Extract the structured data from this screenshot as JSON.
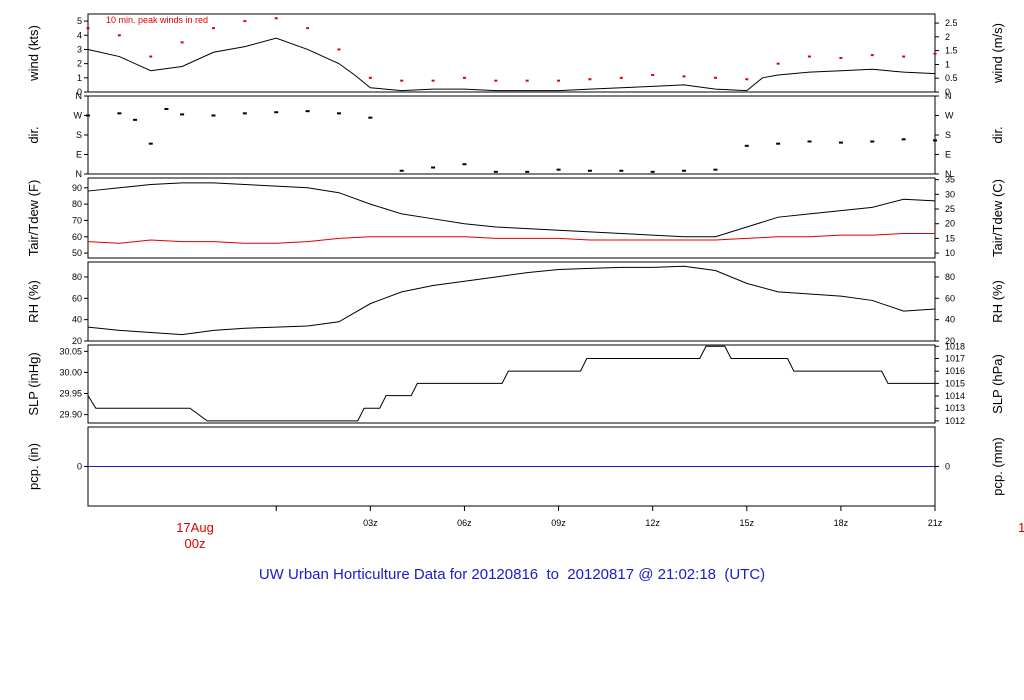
{
  "title": "UW Urban Horticulture Data for 20120816  to  20120817 @ 21:02:18  (UTC)",
  "date_label": {
    "day": "17Aug",
    "hour": "00z"
  },
  "edge_label": "1",
  "colors": {
    "series": "#000000",
    "red": "#e00000",
    "blue": "#1a1acc"
  },
  "chart_data": [
    {
      "type": "line",
      "panel": "wind",
      "ylabel": "wind (kts)",
      "ylabel_right": "wind (m/s)",
      "annotation": "10 min. peak winds in red",
      "ylim": [
        0,
        5.5
      ],
      "yticks": [
        "0",
        "1",
        "2",
        "3",
        "4",
        "5"
      ],
      "yticks_right": [
        "0",
        "0.5",
        "1",
        "1.5",
        "2",
        "2.5"
      ],
      "yticks_right_values": [
        0,
        0.97,
        1.94,
        2.92,
        3.89,
        4.86
      ],
      "x_hours": [
        -6,
        -5,
        -4,
        -3,
        -2,
        -1,
        0,
        1,
        2,
        2.5,
        3,
        4,
        5,
        6,
        7,
        8,
        9,
        10,
        11,
        12,
        13,
        14,
        15,
        15.5,
        16,
        17,
        18,
        19,
        20,
        21
      ],
      "values": [
        3.0,
        2.5,
        1.5,
        1.8,
        2.8,
        3.2,
        3.8,
        3.0,
        2.0,
        1.2,
        0.3,
        0.1,
        0.2,
        0.2,
        0.1,
        0.1,
        0.1,
        0.2,
        0.3,
        0.4,
        0.5,
        0.2,
        0.1,
        1.0,
        1.2,
        1.4,
        1.5,
        1.6,
        1.4,
        1.3
      ],
      "peak_x_hours": [
        -6,
        -5,
        -4,
        -3,
        -2,
        -1,
        0,
        1,
        2,
        3,
        4,
        5,
        6,
        7,
        8,
        9,
        10,
        11,
        12,
        13,
        14,
        15,
        16,
        17,
        18,
        19,
        20,
        21
      ],
      "peak_values": [
        4.5,
        4.0,
        2.5,
        3.5,
        4.5,
        5.0,
        5.2,
        4.5,
        3.0,
        1.0,
        0.8,
        0.8,
        1.0,
        0.8,
        0.8,
        0.8,
        0.9,
        1.0,
        1.2,
        1.1,
        1.0,
        0.9,
        2.0,
        2.5,
        2.4,
        2.6,
        2.5,
        2.7
      ]
    },
    {
      "type": "scatter",
      "panel": "dir",
      "ylabel": "dir.",
      "ylabel_right": "dir.",
      "ylim": [
        0,
        360
      ],
      "yticks": [
        "N",
        "E",
        "S",
        "W",
        "N"
      ],
      "yticks_right": [
        "N",
        "E",
        "S",
        "W",
        "N"
      ],
      "x_hours": [
        -6,
        -5,
        -4.5,
        -4,
        -3.5,
        -3,
        -2,
        -1,
        0,
        1,
        2,
        3,
        4,
        5,
        6,
        7,
        8,
        9,
        10,
        11,
        12,
        13,
        14,
        15,
        16,
        17,
        18,
        19,
        20,
        21
      ],
      "values": [
        270,
        280,
        250,
        140,
        300,
        275,
        270,
        280,
        285,
        290,
        280,
        260,
        15,
        30,
        45,
        10,
        10,
        20,
        15,
        15,
        10,
        15,
        20,
        130,
        140,
        150,
        145,
        150,
        160,
        155
      ]
    },
    {
      "type": "line",
      "panel": "temperature",
      "ylabel": "Tair/Tdew (F)",
      "ylabel_right": "Tair/Tdew (C)",
      "ylim": [
        47,
        96
      ],
      "yticks": [
        "50",
        "60",
        "70",
        "80",
        "90"
      ],
      "yticks_right": [
        "10",
        "15",
        "20",
        "25",
        "30",
        "35"
      ],
      "yticks_right_values": [
        50,
        59,
        68,
        77,
        86,
        95
      ],
      "x_hours": [
        -6,
        -5,
        -4,
        -3,
        -2,
        -1,
        0,
        1,
        2,
        3,
        4,
        5,
        6,
        7,
        8,
        9,
        10,
        11,
        12,
        13,
        14,
        15,
        16,
        17,
        18,
        19,
        20,
        21
      ],
      "series": [
        {
          "name": "Tair",
          "values": [
            88,
            90,
            92,
            93,
            93,
            92,
            91,
            90,
            87,
            80,
            74,
            71,
            68,
            66,
            65,
            64,
            63,
            62,
            61,
            60,
            60,
            66,
            72,
            74,
            76,
            78,
            83,
            82
          ]
        },
        {
          "name": "Tdew",
          "values": [
            57,
            56,
            58,
            57,
            57,
            56,
            56,
            57,
            59,
            60,
            60,
            60,
            60,
            59,
            59,
            59,
            58,
            58,
            58,
            58,
            58,
            59,
            60,
            60,
            61,
            61,
            62,
            62
          ]
        }
      ]
    },
    {
      "type": "line",
      "panel": "rh",
      "ylabel": "RH (%)",
      "ylabel_right": "RH (%)",
      "ylim": [
        20,
        94
      ],
      "yticks": [
        "20",
        "40",
        "60",
        "80"
      ],
      "yticks_right": [
        "20",
        "40",
        "60",
        "80"
      ],
      "x_hours": [
        -6,
        -5,
        -4,
        -3,
        -2,
        -1,
        0,
        1,
        2,
        3,
        4,
        5,
        6,
        7,
        8,
        9,
        10,
        11,
        12,
        13,
        14,
        15,
        16,
        17,
        18,
        19,
        20,
        21
      ],
      "values": [
        33,
        30,
        28,
        26,
        30,
        32,
        33,
        34,
        38,
        55,
        66,
        72,
        76,
        80,
        84,
        87,
        88,
        89,
        89,
        90,
        86,
        74,
        66,
        64,
        62,
        58,
        48,
        50
      ]
    },
    {
      "type": "line",
      "panel": "slp",
      "ylabel": "SLP (inHg)",
      "ylabel_right": "SLP (hPa)",
      "ylim": [
        29.88,
        30.065
      ],
      "yticks": [
        "29.90",
        "29.95",
        "30.00",
        "30.05"
      ],
      "yticks_right": [
        "1012",
        "1013",
        "1014",
        "1015",
        "1016",
        "1017",
        "1018"
      ],
      "yticks_right_values": [
        29.885,
        29.915,
        29.944,
        29.974,
        30.003,
        30.033,
        30.062
      ],
      "x_hours": [
        -6,
        -5.75,
        -4.75,
        -2.75,
        -2.2,
        -2.0,
        2.0,
        2.6,
        2.8,
        3.3,
        3.5,
        4.3,
        4.5,
        7.2,
        7.4,
        9.7,
        9.9,
        13.5,
        13.7,
        14.3,
        14.5,
        16.3,
        16.5,
        19.3,
        19.5,
        21
      ],
      "values": [
        29.945,
        29.915,
        29.915,
        29.915,
        29.885,
        29.885,
        29.885,
        29.885,
        29.915,
        29.915,
        29.945,
        29.945,
        29.974,
        29.974,
        30.003,
        30.003,
        30.033,
        30.033,
        30.062,
        30.062,
        30.033,
        30.033,
        30.003,
        30.003,
        29.974,
        29.974
      ]
    },
    {
      "type": "line",
      "panel": "precip",
      "ylabel": "pcp. (in)",
      "ylabel_right": "pcp. (mm)",
      "ylim": [
        -1,
        1
      ],
      "yticks": [
        "0"
      ],
      "yticks_right": [
        "0"
      ],
      "x_hours": [
        -6,
        21
      ],
      "values": [
        0,
        0
      ]
    }
  ],
  "xticks": [
    "03z",
    "06z",
    "09z",
    "12z",
    "15z",
    "18z",
    "21z"
  ],
  "xticks_values": [
    3,
    6,
    9,
    12,
    15,
    18,
    21
  ],
  "xlim": [
    -6,
    21
  ]
}
